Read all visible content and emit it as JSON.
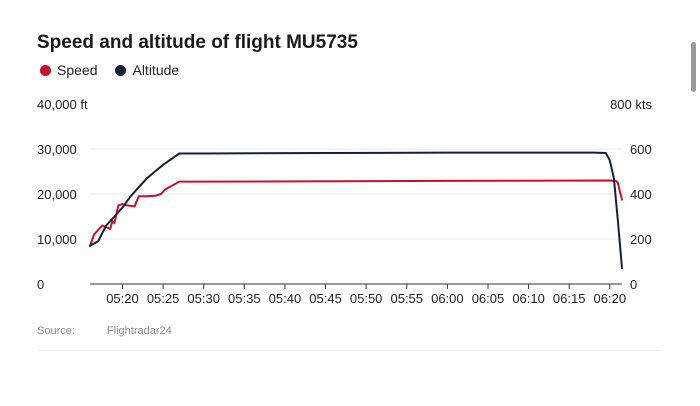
{
  "colors": {
    "speed": "#c8102e",
    "altitude": "#13213f",
    "grid": "#e8e8e8",
    "axis": "#333333"
  },
  "source": {
    "label": "Source:",
    "value": "Flightradar24"
  },
  "chart_data": {
    "type": "line",
    "title": "Speed and altitude of flight MU5735",
    "x_ticks": [
      "05:20",
      "05:25",
      "05:30",
      "05:35",
      "05:40",
      "05:45",
      "05:50",
      "05:55",
      "06:00",
      "06:05",
      "06:10",
      "06:15",
      "06:20"
    ],
    "x_range": [
      "05:16",
      "06:21:30"
    ],
    "y_left": {
      "unit_label": "40,000 ft",
      "range": [
        0,
        40000
      ],
      "ticks": [
        {
          "value": 0,
          "label": "0"
        },
        {
          "value": 10000,
          "label": "10,000"
        },
        {
          "value": 20000,
          "label": "20,000"
        },
        {
          "value": 30000,
          "label": "30,000"
        },
        {
          "value": 40000,
          "label": "40,000 ft"
        }
      ]
    },
    "y_right": {
      "unit_label": "800 kts",
      "range": [
        0,
        800
      ],
      "ticks": [
        {
          "value": 0,
          "label": "0"
        },
        {
          "value": 200,
          "label": "200"
        },
        {
          "value": 400,
          "label": "400"
        },
        {
          "value": 600,
          "label": "600"
        },
        {
          "value": 800,
          "label": "800 kts"
        }
      ]
    },
    "grid": true,
    "legend_position": "top-left",
    "series": [
      {
        "name": "Speed",
        "axis": "right",
        "points": [
          [
            "05:16",
            170
          ],
          [
            "05:16:30",
            220
          ],
          [
            "05:17:30",
            260
          ],
          [
            "05:18:30",
            245
          ],
          [
            "05:18:45",
            280
          ],
          [
            "05:19:00",
            270
          ],
          [
            "05:19:30",
            350
          ],
          [
            "05:20",
            355
          ],
          [
            "05:20:30",
            350
          ],
          [
            "05:21:30",
            345
          ],
          [
            "05:22",
            390
          ],
          [
            "05:23",
            390
          ],
          [
            "05:24",
            392
          ],
          [
            "05:24:45",
            400
          ],
          [
            "05:25:15",
            420
          ],
          [
            "05:27",
            455
          ],
          [
            "05:30",
            455
          ],
          [
            "06:00",
            458
          ],
          [
            "06:20",
            460
          ],
          [
            "06:20:45",
            458
          ],
          [
            "06:21",
            450
          ],
          [
            "06:21:15",
            410
          ],
          [
            "06:21:30",
            375
          ]
        ]
      },
      {
        "name": "Altitude",
        "axis": "left",
        "points": [
          [
            "05:16",
            8500
          ],
          [
            "05:17",
            9500
          ],
          [
            "05:18",
            13000
          ],
          [
            "05:19",
            15000
          ],
          [
            "05:20",
            17000
          ],
          [
            "05:21",
            19500
          ],
          [
            "05:22",
            21500
          ],
          [
            "05:23",
            23500
          ],
          [
            "05:24",
            25000
          ],
          [
            "05:25",
            26500
          ],
          [
            "05:27",
            29000
          ],
          [
            "05:30",
            29000
          ],
          [
            "05:45",
            29100
          ],
          [
            "06:00",
            29200
          ],
          [
            "06:18",
            29200
          ],
          [
            "06:19:30",
            29100
          ],
          [
            "06:20",
            27500
          ],
          [
            "06:20:30",
            23500
          ],
          [
            "06:21",
            14000
          ],
          [
            "06:21:30",
            3500
          ]
        ]
      }
    ]
  }
}
